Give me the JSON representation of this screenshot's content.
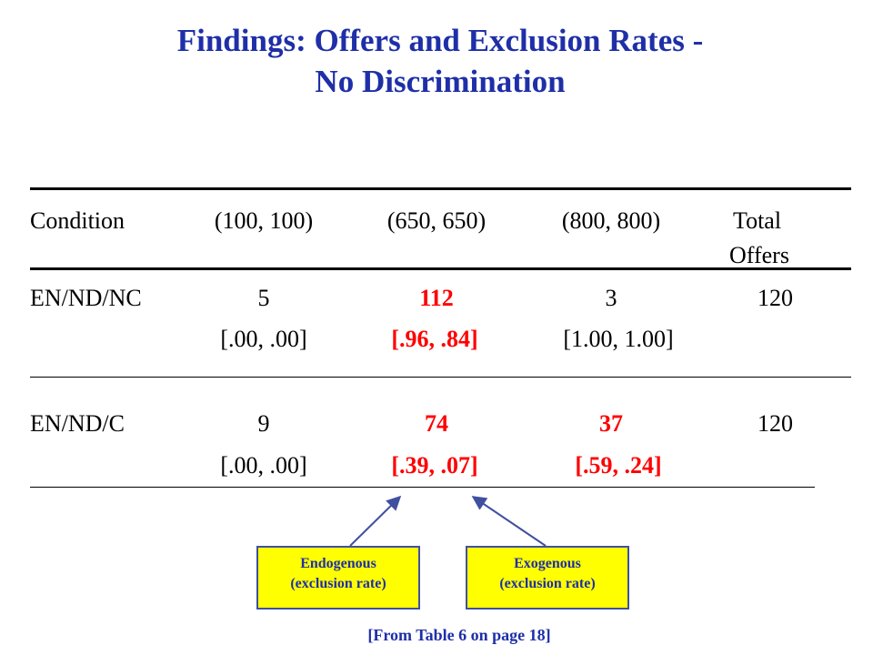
{
  "title": {
    "line1": "Findings: Offers and Exclusion Rates -",
    "line2": "No Discrimination"
  },
  "table": {
    "headers": [
      "Condition",
      "(100, 100)",
      "(650, 650)",
      "(800, 800)",
      "Total",
      "Offers"
    ],
    "rows": [
      {
        "condition": "EN/ND/NC",
        "offers": [
          "5",
          "112",
          "3"
        ],
        "total": "120",
        "rates": [
          "[.00, .00]",
          "[.96, .84]",
          "[1.00, 1.00]"
        ]
      },
      {
        "condition": "EN/ND/C",
        "offers": [
          "9",
          "74",
          "37"
        ],
        "total": "120",
        "rates": [
          "[.00, .00]",
          "[.39, .07]",
          "[.59, .24]"
        ]
      }
    ]
  },
  "callouts": {
    "endogenous": {
      "line1": "Endogenous",
      "line2": "(exclusion rate)"
    },
    "exogenous": {
      "line1": "Exogenous",
      "line2": "(exclusion rate)"
    }
  },
  "source_note": "[From Table 6 on page 18]",
  "colors": {
    "title": "#1f2fa8",
    "highlight": "#ff0000",
    "callout_fill": "#ffff00",
    "arrow": "#4050a0"
  }
}
